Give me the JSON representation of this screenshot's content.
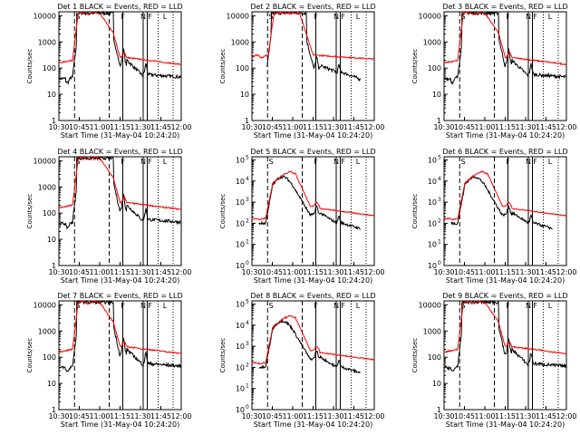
{
  "chart_data": {
    "type": "line",
    "layout": "3x3 grid",
    "x_tick_labels": [
      "10:30",
      "10:45",
      "11:00",
      "11:15",
      "11:30",
      "11:45",
      "12:00"
    ],
    "x_range_min": [
      30,
      120
    ],
    "xlabel": "Start Time (31-May-04 10:24:20)",
    "ylabel": "Counts/sec",
    "y_scale": "log",
    "markers": [
      {
        "label": "S",
        "x_min": 44
      },
      {
        "label": "F",
        "x_min": 77
      },
      {
        "label": "N",
        "x_min": 92
      },
      {
        "label": "F",
        "x_min": 97
      },
      {
        "label": "L",
        "x_min": 108
      }
    ],
    "vlines": [
      {
        "x_min": 41.5,
        "style": "dashed"
      },
      {
        "x_min": 67,
        "style": "dashed"
      },
      {
        "x_min": 77,
        "style": "solid"
      },
      {
        "x_min": 92,
        "style": "solid"
      },
      {
        "x_min": 95,
        "style": "solid"
      },
      {
        "x_min": 103,
        "style": "dotted"
      },
      {
        "x_min": 114,
        "style": "dotted"
      }
    ],
    "series_colors": {
      "events": "#000000",
      "lld": "#ff0000"
    },
    "panels": [
      {
        "title": "Det 1 BLACK = Events, RED = LLD",
        "yticks": [
          "1",
          "10",
          "100",
          "1000",
          "10000"
        ],
        "ylog": [
          0,
          4.15
        ],
        "sup": false,
        "profile": "A"
      },
      {
        "title": "Det 2 BLACK = Events, RED = LLD",
        "yticks": [
          "1",
          "10",
          "100",
          "1000",
          "10000"
        ],
        "ylog": [
          0,
          4.15
        ],
        "sup": false,
        "profile": "B"
      },
      {
        "title": "Det 3 BLACK = Events, RED = LLD",
        "yticks": [
          "1",
          "10",
          "100",
          "1000",
          "10000"
        ],
        "ylog": [
          0,
          4.15
        ],
        "sup": false,
        "profile": "A"
      },
      {
        "title": "Det 4 BLACK = Events, RED = LLD",
        "yticks": [
          "1",
          "10",
          "100",
          "1000",
          "10000"
        ],
        "ylog": [
          0,
          4.15
        ],
        "sup": false,
        "profile": "A"
      },
      {
        "title": "Det 5 BLACK = Events, RED = LLD",
        "yticks": [
          "10",
          "1",
          "2",
          "3",
          "4",
          "5"
        ],
        "ylog": [
          0,
          5.15
        ],
        "sup": true,
        "profile": "C"
      },
      {
        "title": "Det 6 BLACK = Events, RED = LLD",
        "yticks": [
          "10",
          "1",
          "2",
          "3",
          "4",
          "5"
        ],
        "ylog": [
          0,
          5.15
        ],
        "sup": true,
        "profile": "C"
      },
      {
        "title": "Det 7 BLACK = Events, RED = LLD",
        "yticks": [
          "1",
          "10",
          "100",
          "1000",
          "10000"
        ],
        "ylog": [
          0,
          4.15
        ],
        "sup": false,
        "profile": "A"
      },
      {
        "title": "Det 8 BLACK = Events, RED = LLD",
        "yticks": [
          "10",
          "1",
          "2",
          "3",
          "4",
          "5"
        ],
        "ylog": [
          0,
          5.15
        ],
        "sup": true,
        "profile": "C"
      },
      {
        "title": "Det 9 BLACK = Events, RED = LLD",
        "yticks": [
          "1",
          "10",
          "100",
          "1000",
          "10000"
        ],
        "ylog": [
          0,
          4.15
        ],
        "sup": false,
        "profile": "A"
      }
    ]
  }
}
